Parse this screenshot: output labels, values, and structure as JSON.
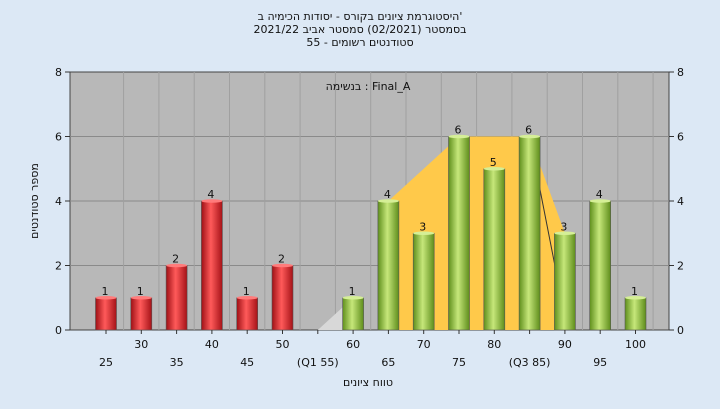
{
  "chart_data": {
    "type": "bar",
    "title_lines": [
      "היסטוגרמת ציונים בקורס - יסודות הכימיה ב'",
      "בסמסטר  (02/2021)  סמסטר אביב 2021/22",
      "סטודנטים רשומים - 55"
    ],
    "annotation": "בנשימה : Final_A",
    "xlabel": "טווח ציונים",
    "ylabel": "מספר סטודנטים",
    "ylim": [
      0,
      8
    ],
    "yticks": [
      0,
      2,
      4,
      6,
      8
    ],
    "categories": [
      "25",
      "30",
      "35",
      "40",
      "45",
      "50",
      "(Q1 55)",
      "60",
      "65",
      "70",
      "75",
      "80",
      "(Q3 85)",
      "90",
      "95",
      "100"
    ],
    "values": [
      1,
      1,
      2,
      4,
      1,
      2,
      0,
      1,
      4,
      3,
      6,
      5,
      6,
      3,
      4,
      1
    ],
    "bar_colors": [
      "red",
      "red",
      "red",
      "red",
      "red",
      "red",
      "none",
      "green",
      "green",
      "green",
      "green",
      "green",
      "green",
      "green",
      "green",
      "green"
    ],
    "overlays": {
      "gray_area": [
        [
          55,
          0
        ],
        [
          60,
          1
        ]
      ],
      "yellow_area": [
        [
          65,
          4
        ],
        [
          75,
          6
        ],
        [
          85,
          6
        ],
        [
          90,
          3
        ]
      ]
    },
    "grid": true,
    "colors": {
      "background": "#dce8f5",
      "plot": "#b8b8b8",
      "red_bar": "#e0262a",
      "green_bar": "#8fbf3a",
      "yellow_area": "#ffc94a",
      "gray_area": "#d8d8d8"
    }
  }
}
